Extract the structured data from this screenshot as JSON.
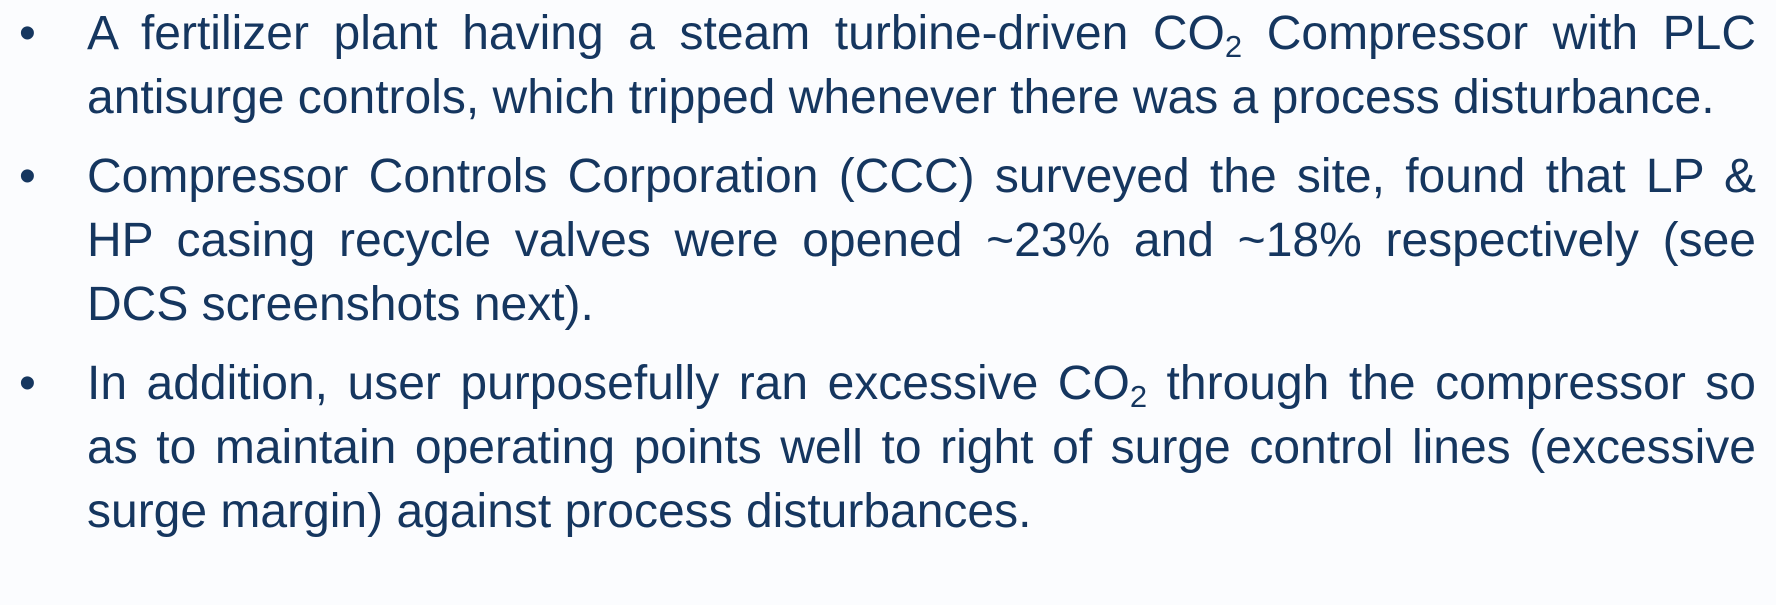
{
  "bullets": [
    [
      "A fertilizer plant having a steam turbine-driven CO",
      "2",
      " Compressor with PLC antisurge controls, which tripped whenever there was a process disturbance."
    ],
    [
      "Compressor Controls Corporation (CCC) surveyed the site, found that LP & HP casing recycle valves were opened ~23% and ~18% respectively (see DCS screenshots next)."
    ],
    [
      "In addition, user purposefully ran excessive CO",
      "2",
      " through the compressor so as to maintain operating points well to right of surge control lines (excessive surge margin) against process disturbances."
    ]
  ]
}
